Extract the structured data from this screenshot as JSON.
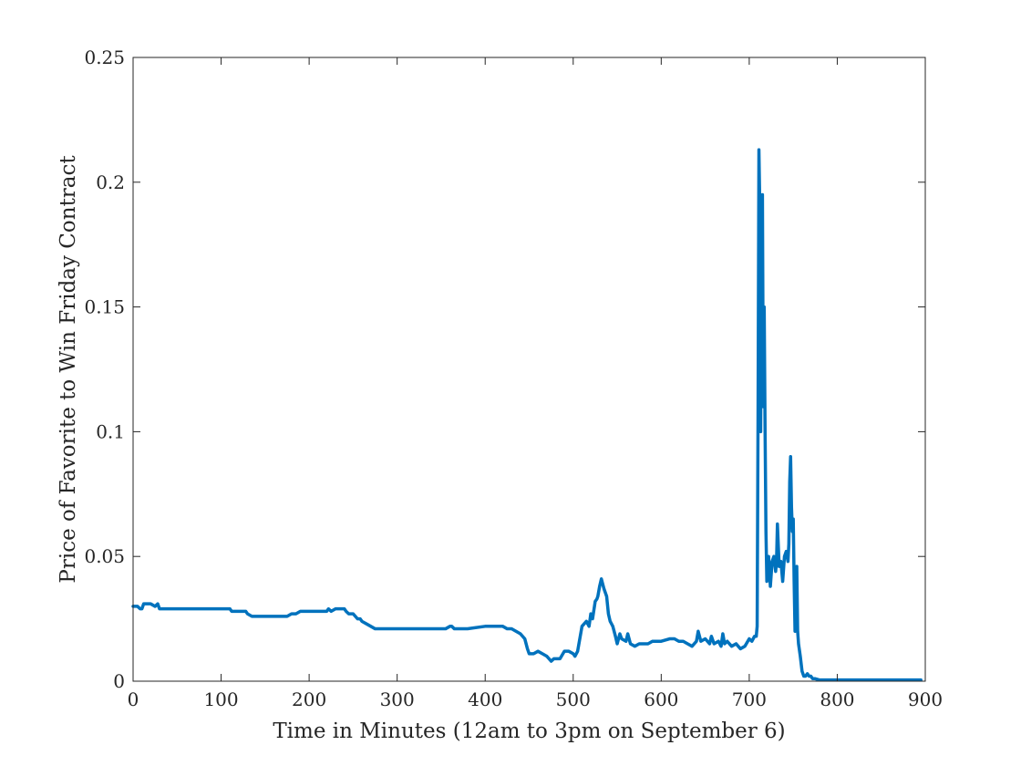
{
  "chart_data": {
    "type": "line",
    "title": "",
    "xlabel": "Time in Minutes (12am to 3pm on September 6)",
    "ylabel": "Price of Favorite to Win Friday Contract",
    "xlim": [
      0,
      900
    ],
    "ylim": [
      0,
      0.25
    ],
    "xticks": [
      0,
      100,
      200,
      300,
      400,
      500,
      600,
      700,
      800,
      900
    ],
    "yticks": [
      0,
      0.05,
      0.1,
      0.15,
      0.2,
      0.25
    ],
    "xtick_labels": [
      "0",
      "100",
      "200",
      "300",
      "400",
      "500",
      "600",
      "700",
      "800",
      "900"
    ],
    "ytick_labels": [
      "0",
      "0.05",
      "0.1",
      "0.15",
      "0.2",
      "0.25"
    ],
    "grid": false,
    "box": true,
    "line_color": "#0072BD",
    "axis_color": "#262626",
    "series": [
      {
        "name": "",
        "x": [
          0,
          5,
          8,
          10,
          12,
          15,
          20,
          25,
          28,
          30,
          32,
          40,
          60,
          80,
          100,
          110,
          112,
          115,
          120,
          125,
          128,
          130,
          135,
          140,
          150,
          160,
          175,
          180,
          185,
          190,
          200,
          210,
          215,
          220,
          222,
          225,
          230,
          235,
          240,
          242,
          245,
          250,
          255,
          258,
          260,
          265,
          270,
          275,
          280,
          300,
          320,
          340,
          345,
          350,
          355,
          360,
          362,
          365,
          370,
          380,
          400,
          410,
          420,
          425,
          430,
          435,
          440,
          445,
          448,
          450,
          455,
          460,
          465,
          470,
          475,
          478,
          480,
          485,
          490,
          495,
          500,
          502,
          505,
          510,
          515,
          518,
          520,
          522,
          525,
          527,
          528,
          530,
          532,
          535,
          538,
          540,
          542,
          545,
          548,
          550,
          553,
          555,
          560,
          562,
          565,
          570,
          575,
          580,
          585,
          590,
          595,
          600,
          610,
          615,
          620,
          625,
          630,
          635,
          640,
          642,
          645,
          650,
          655,
          657,
          660,
          665,
          668,
          670,
          672,
          675,
          680,
          685,
          690,
          695,
          700,
          703,
          706,
          708,
          709,
          710,
          711,
          712,
          713,
          714,
          715,
          716,
          717,
          718,
          719,
          720,
          722,
          724,
          726,
          728,
          730,
          731,
          732,
          734,
          736,
          738,
          740,
          742,
          744,
          745,
          746,
          747,
          748,
          749,
          750,
          751,
          752,
          753,
          754,
          755,
          756,
          758,
          760,
          762,
          764,
          766,
          768,
          770,
          772,
          775,
          780,
          800,
          850,
          895
        ],
        "y": [
          0.03,
          0.03,
          0.029,
          0.029,
          0.031,
          0.031,
          0.031,
          0.03,
          0.031,
          0.029,
          0.029,
          0.029,
          0.029,
          0.029,
          0.029,
          0.029,
          0.028,
          0.028,
          0.028,
          0.028,
          0.028,
          0.027,
          0.026,
          0.026,
          0.026,
          0.026,
          0.026,
          0.027,
          0.027,
          0.028,
          0.028,
          0.028,
          0.028,
          0.028,
          0.029,
          0.028,
          0.029,
          0.029,
          0.029,
          0.028,
          0.027,
          0.027,
          0.025,
          0.025,
          0.024,
          0.023,
          0.022,
          0.021,
          0.021,
          0.021,
          0.021,
          0.021,
          0.021,
          0.021,
          0.021,
          0.022,
          0.022,
          0.021,
          0.021,
          0.021,
          0.022,
          0.022,
          0.022,
          0.021,
          0.021,
          0.02,
          0.019,
          0.017,
          0.013,
          0.011,
          0.011,
          0.012,
          0.011,
          0.01,
          0.008,
          0.009,
          0.009,
          0.009,
          0.012,
          0.012,
          0.011,
          0.01,
          0.012,
          0.022,
          0.024,
          0.022,
          0.027,
          0.025,
          0.032,
          0.033,
          0.034,
          0.038,
          0.041,
          0.037,
          0.034,
          0.027,
          0.024,
          0.022,
          0.018,
          0.015,
          0.019,
          0.017,
          0.016,
          0.019,
          0.015,
          0.014,
          0.015,
          0.015,
          0.015,
          0.016,
          0.016,
          0.016,
          0.017,
          0.017,
          0.016,
          0.016,
          0.015,
          0.014,
          0.016,
          0.02,
          0.016,
          0.017,
          0.015,
          0.018,
          0.015,
          0.016,
          0.014,
          0.019,
          0.015,
          0.016,
          0.014,
          0.015,
          0.013,
          0.014,
          0.017,
          0.016,
          0.018,
          0.018,
          0.022,
          0.105,
          0.213,
          0.19,
          0.1,
          0.18,
          0.195,
          0.11,
          0.15,
          0.1,
          0.06,
          0.04,
          0.05,
          0.038,
          0.048,
          0.05,
          0.044,
          0.048,
          0.063,
          0.046,
          0.048,
          0.04,
          0.05,
          0.052,
          0.048,
          0.055,
          0.08,
          0.09,
          0.07,
          0.06,
          0.065,
          0.04,
          0.02,
          0.035,
          0.046,
          0.02,
          0.015,
          0.01,
          0.004,
          0.002,
          0.002,
          0.003,
          0.002,
          0.002,
          0.001,
          0.001,
          0.0005,
          0.0005,
          0.0005,
          0.0005
        ]
      }
    ]
  }
}
